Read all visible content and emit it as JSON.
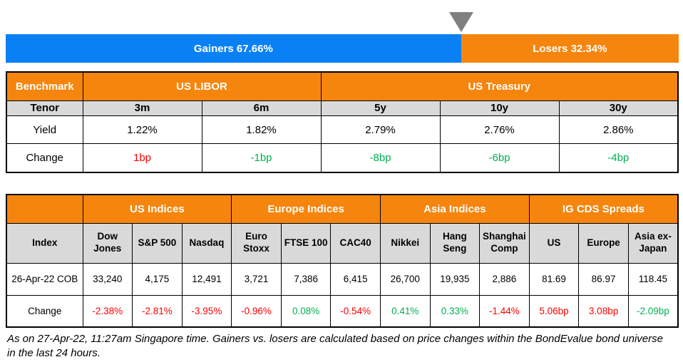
{
  "colors": {
    "gainers_blue": "#0981F5",
    "losers_orange": "#F6850D",
    "header_gray": "#D9D9D9",
    "negative_red": "#FF0000",
    "positive_green": "#00B050",
    "marker_gray": "#808080"
  },
  "bar": {
    "marker": "down-triangle",
    "gainers": {
      "label": "Gainers 67.66%",
      "pct": 67.66
    },
    "losers": {
      "label": "Losers 32.34%",
      "pct": 32.34
    }
  },
  "benchmark_table": {
    "corner_label": "Benchmark",
    "groups": [
      {
        "label": "US LIBOR",
        "span": 2
      },
      {
        "label": "US Treasury",
        "span": 3
      }
    ],
    "tenor": {
      "label": "Tenor",
      "values": [
        "3m",
        "6m",
        "5y",
        "10y",
        "30y"
      ]
    },
    "yield": {
      "label": "Yield",
      "values": [
        "1.22%",
        "1.82%",
        "2.79%",
        "2.76%",
        "2.86%"
      ]
    },
    "change": {
      "label": "Change",
      "values": [
        "1bp",
        "-1bp",
        "-8bp",
        "-6bp",
        "-4bp"
      ],
      "colors": [
        "red",
        "green",
        "green",
        "green",
        "green"
      ]
    }
  },
  "indices_table": {
    "corner_label": "Index",
    "groups": [
      {
        "label": "US Indices",
        "span": 3
      },
      {
        "label": "Europe Indices",
        "span": 3
      },
      {
        "label": "Asia Indices",
        "span": 3
      },
      {
        "label": "IG CDS Spreads",
        "span": 3
      }
    ],
    "columns": [
      "Dow\nJones",
      "S&P 500",
      "Nasdaq",
      "Euro\nStoxx",
      "FTSE 100",
      "CAC40",
      "Nikkei",
      "Hang\nSeng",
      "Shanghai\nComp",
      "US",
      "Europe",
      "Asia ex-\nJapan"
    ],
    "close": {
      "label": "26-Apr-22 COB",
      "values": [
        "33,240",
        "4,175",
        "12,491",
        "3,721",
        "7,386",
        "6,415",
        "26,700",
        "19,935",
        "2,886",
        "81.69",
        "86.97",
        "118.45"
      ]
    },
    "change": {
      "label": "Change",
      "values": [
        "-2.38%",
        "-2.81%",
        "-3.95%",
        "-0.96%",
        "0.08%",
        "-0.54%",
        "0.41%",
        "0.33%",
        "-1.44%",
        "5.06bp",
        "3.08bp",
        "-2.09bp"
      ],
      "colors": [
        "red",
        "red",
        "red",
        "red",
        "green",
        "red",
        "green",
        "green",
        "red",
        "red",
        "red",
        "green"
      ]
    }
  },
  "footnote": "As on 27-Apr-22, 11:27am Singapore time. Gainers vs. losers are calculated based on price changes within the BondEvalue bond universe in the last 24 hours.",
  "chart_data": [
    {
      "type": "bar",
      "title": "Gainers vs Losers (% of BondEvalue bond universe, last 24 hours)",
      "categories": [
        "Gainers",
        "Losers"
      ],
      "values": [
        67.66,
        32.34
      ],
      "orientation": "horizontal-stacked",
      "colors": [
        "#0981F5",
        "#F6850D"
      ],
      "annotations": [
        "gray down-triangle marker at 67.66% boundary"
      ],
      "xlim": [
        0,
        100
      ]
    },
    {
      "type": "table",
      "title": "Benchmark",
      "column_groups": [
        "US LIBOR",
        "US LIBOR",
        "US Treasury",
        "US Treasury",
        "US Treasury"
      ],
      "categories": [
        "3m",
        "6m",
        "5y",
        "10y",
        "30y"
      ],
      "series": [
        {
          "name": "Yield",
          "values": [
            "1.22%",
            "1.82%",
            "2.79%",
            "2.76%",
            "2.86%"
          ]
        },
        {
          "name": "Change",
          "values": [
            "1bp",
            "-1bp",
            "-8bp",
            "-6bp",
            "-4bp"
          ]
        }
      ]
    },
    {
      "type": "table",
      "title": "Indices and IG CDS Spreads",
      "column_groups": [
        "US Indices",
        "US Indices",
        "US Indices",
        "Europe Indices",
        "Europe Indices",
        "Europe Indices",
        "Asia Indices",
        "Asia Indices",
        "Asia Indices",
        "IG CDS Spreads",
        "IG CDS Spreads",
        "IG CDS Spreads"
      ],
      "categories": [
        "Dow Jones",
        "S&P 500",
        "Nasdaq",
        "Euro Stoxx",
        "FTSE 100",
        "CAC40",
        "Nikkei",
        "Hang Seng",
        "Shanghai Comp",
        "US",
        "Europe",
        "Asia ex-Japan"
      ],
      "series": [
        {
          "name": "26-Apr-22 COB",
          "values": [
            33240,
            4175,
            12491,
            3721,
            7386,
            6415,
            26700,
            19935,
            2886,
            81.69,
            86.97,
            118.45
          ]
        },
        {
          "name": "Change",
          "values": [
            "-2.38%",
            "-2.81%",
            "-3.95%",
            "-0.96%",
            "0.08%",
            "-0.54%",
            "0.41%",
            "0.33%",
            "-1.44%",
            "5.06bp",
            "3.08bp",
            "-2.09bp"
          ]
        }
      ]
    }
  ]
}
